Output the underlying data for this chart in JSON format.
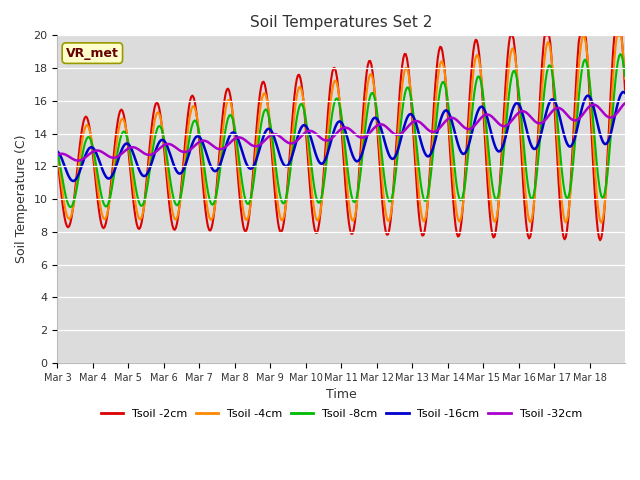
{
  "title": "Soil Temperatures Set 2",
  "xlabel": "Time",
  "ylabel": "Soil Temperature (C)",
  "ylim": [
    0,
    20
  ],
  "yticks": [
    0,
    2,
    4,
    6,
    8,
    10,
    12,
    14,
    16,
    18,
    20
  ],
  "x_labels": [
    "Mar 3",
    "Mar 4",
    "Mar 5",
    "Mar 6",
    "Mar 7",
    "Mar 8",
    "Mar 9",
    "Mar 10",
    "Mar 11",
    "Mar 12",
    "Mar 13",
    "Mar 14",
    "Mar 15",
    "Mar 16",
    "Mar 17",
    "Mar 18"
  ],
  "annotation_text": "VR_met",
  "background_color": "#dcdcdc",
  "figure_background": "#ffffff",
  "legend_labels": [
    "Tsoil -2cm",
    "Tsoil -4cm",
    "Tsoil -8cm",
    "Tsoil -16cm",
    "Tsoil -32cm"
  ],
  "legend_colors": [
    "#dd0000",
    "#ff8800",
    "#00bb00",
    "#0000cc",
    "#aa00cc"
  ]
}
